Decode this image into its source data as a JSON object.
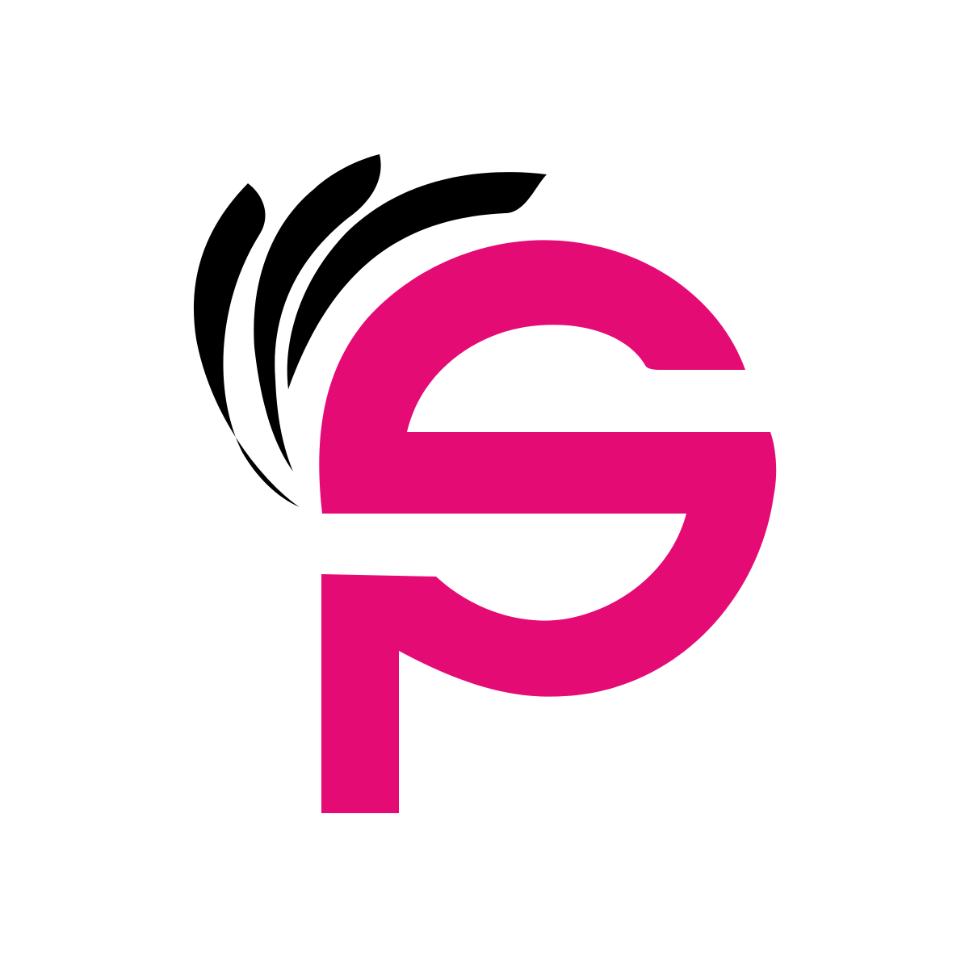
{
  "logo": {
    "icon": "sp-monogram-logo",
    "letters_depicted": "SP",
    "colors": {
      "background": "#ffffff",
      "monogram": "#e40b75",
      "swooshes": "#000000"
    },
    "swoosh_count": 3
  }
}
